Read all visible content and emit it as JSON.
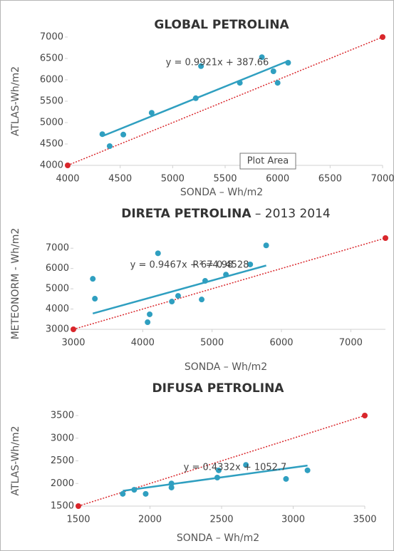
{
  "chart_data": [
    {
      "type": "scatter",
      "title": "GLOBAL PETROLINA",
      "xlabel": "SONDA – Wh/m2",
      "ylabel": "ATLAS-Wh/m2",
      "xlim": [
        4000,
        7000
      ],
      "ylim": [
        4000,
        7000
      ],
      "xticks": [
        4000,
        4500,
        5000,
        5500,
        6000,
        6500,
        7000
      ],
      "yticks": [
        4000,
        4500,
        5000,
        5500,
        6000,
        6500,
        7000
      ],
      "x": [
        4330,
        4400,
        4530,
        4800,
        5220,
        5270,
        5640,
        5850,
        5960,
        6000,
        6100
      ],
      "y": [
        4730,
        4450,
        4720,
        5230,
        5570,
        6320,
        5930,
        6530,
        6200,
        5930,
        6400
      ],
      "color": "#2f9fc0",
      "trendline": {
        "slope": 0.9921,
        "intercept": 387.66,
        "label": "y = 0.9921x + 387.66",
        "color": "#2f9fc0"
      },
      "reference_line": {
        "x": [
          4000,
          7000
        ],
        "y": [
          4000,
          7000
        ],
        "color": "#d9262b"
      },
      "tooltip": "Plot Area"
    },
    {
      "type": "scatter",
      "title": "DIRETA PETROLINA",
      "subtitle": "– 2013 2014",
      "xlabel": "SONDA – Wh/m2",
      "ylabel": "METEONORM - Wh/m2",
      "xlim": [
        3000,
        7500
      ],
      "ylim": [
        3000,
        7500
      ],
      "xticks": [
        3000,
        4000,
        5000,
        6000,
        7000
      ],
      "yticks": [
        3000,
        4000,
        5000,
        6000,
        7000
      ],
      "x": [
        3280,
        3310,
        4070,
        4100,
        4220,
        4420,
        4510,
        4850,
        4900,
        5200,
        5550,
        5780
      ],
      "y": [
        5490,
        4510,
        3350,
        3740,
        6750,
        4370,
        4650,
        4470,
        5390,
        5700,
        6200,
        7140
      ],
      "color": "#2f9fc0",
      "trendline": {
        "slope": 0.9467,
        "intercept": 674.98,
        "label": "y = 0.9467x + 674.98",
        "r_squared": "R² = 0.4528",
        "color": "#2f9fc0"
      },
      "reference_line": {
        "x": [
          3000,
          7500
        ],
        "y": [
          3000,
          7500
        ],
        "color": "#d9262b"
      }
    },
    {
      "type": "scatter",
      "title": "DIFUSA PETROLINA",
      "xlabel": "SONDA – Wh/m2",
      "ylabel": "ATLAS-Wh/m2",
      "xlim": [
        1500,
        3500
      ],
      "ylim": [
        1500,
        3500
      ],
      "xticks": [
        1500,
        2000,
        2500,
        3000,
        3500
      ],
      "yticks": [
        1500,
        2000,
        2500,
        3000,
        3500
      ],
      "x": [
        1810,
        1890,
        1970,
        2150,
        2150,
        2470,
        2480,
        2670,
        2950,
        3100
      ],
      "y": [
        1770,
        1860,
        1770,
        2000,
        1910,
        2130,
        2290,
        2410,
        2100,
        2290
      ],
      "color": "#2f9fc0",
      "trendline": {
        "slope": 0.4332,
        "intercept": 1052.7,
        "label": "y = 0.4332x + 1052.7",
        "color": "#2f9fc0"
      },
      "reference_line": {
        "x": [
          1500,
          3500
        ],
        "y": [
          1500,
          3500
        ],
        "color": "#d9262b"
      }
    }
  ]
}
